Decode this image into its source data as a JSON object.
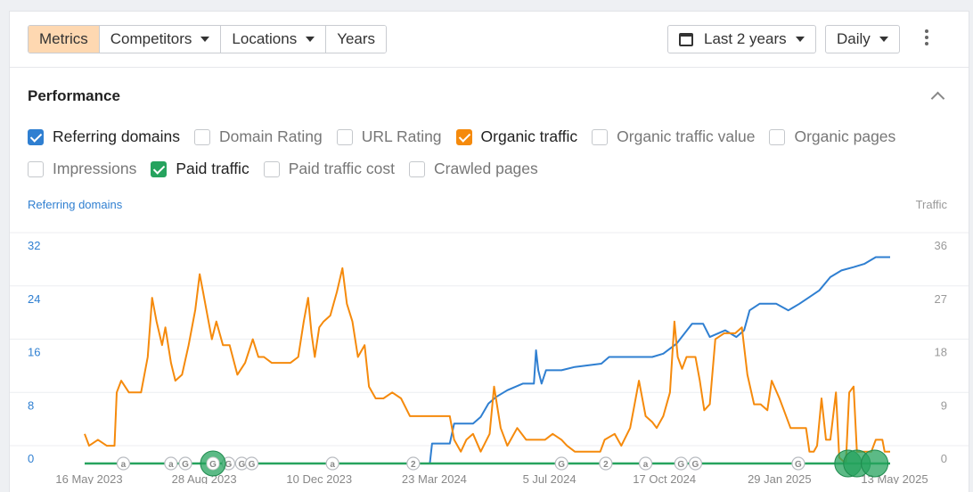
{
  "toolbar": {
    "tabs": [
      {
        "label": "Metrics",
        "active": true,
        "dropdown": false
      },
      {
        "label": "Competitors",
        "active": false,
        "dropdown": true
      },
      {
        "label": "Locations",
        "active": false,
        "dropdown": true
      },
      {
        "label": "Years",
        "active": false,
        "dropdown": false
      }
    ],
    "date_range": "Last 2 years",
    "interval": "Daily",
    "more_icon": "kebab-vertical-icon"
  },
  "panel": {
    "title": "Performance",
    "collapse_icon": "chevron-up-icon",
    "metrics": [
      {
        "label": "Referring domains",
        "checked": true,
        "color": "#2f7fd1"
      },
      {
        "label": "Domain Rating",
        "checked": false
      },
      {
        "label": "URL Rating",
        "checked": false
      },
      {
        "label": "Organic traffic",
        "checked": true,
        "color": "#f58a0c"
      },
      {
        "label": "Organic traffic value",
        "checked": false
      },
      {
        "label": "Organic pages",
        "checked": false
      },
      {
        "label": "Impressions",
        "checked": false
      },
      {
        "label": "Paid traffic",
        "checked": true,
        "color": "#26a35e"
      },
      {
        "label": "Paid traffic cost",
        "checked": false
      },
      {
        "label": "Crawled pages",
        "checked": false
      }
    ]
  },
  "chart_data": {
    "type": "line",
    "left_axis_label": "Referring domains",
    "right_axis_label": "Traffic",
    "left_ticks": [
      "32",
      "24",
      "16",
      "8",
      "0"
    ],
    "right_ticks": [
      "36",
      "27",
      "18",
      "9",
      "0"
    ],
    "x_ticks": [
      "16 May 2023",
      "28 Aug 2023",
      "10 Dec 2023",
      "23 Mar 2024",
      "5 Jul 2024",
      "17 Oct 2024",
      "29 Jan 2025",
      "13 May 2025"
    ],
    "x_range": [
      "2023-05-16",
      "2025-05-13"
    ],
    "left_ylim": [
      0,
      32
    ],
    "right_ylim": [
      0,
      36
    ],
    "series": [
      {
        "name": "Referring domains",
        "axis": "left",
        "color": "#2f7fd1",
        "points": [
          [
            "2024-03-23",
            0
          ],
          [
            "2024-03-25",
            3
          ],
          [
            "2024-04-10",
            3
          ],
          [
            "2024-04-14",
            6
          ],
          [
            "2024-05-01",
            6
          ],
          [
            "2024-05-08",
            7
          ],
          [
            "2024-05-15",
            9
          ],
          [
            "2024-05-22",
            10
          ],
          [
            "2024-06-01",
            11
          ],
          [
            "2024-06-15",
            12
          ],
          [
            "2024-06-25",
            12
          ],
          [
            "2024-06-27",
            17
          ],
          [
            "2024-06-29",
            14
          ],
          [
            "2024-07-02",
            12
          ],
          [
            "2024-07-06",
            14
          ],
          [
            "2024-07-20",
            14
          ],
          [
            "2024-08-01",
            14.5
          ],
          [
            "2024-08-25",
            15
          ],
          [
            "2024-09-01",
            16
          ],
          [
            "2024-10-10",
            16
          ],
          [
            "2024-10-20",
            16.5
          ],
          [
            "2024-11-01",
            18
          ],
          [
            "2024-11-15",
            21
          ],
          [
            "2024-11-25",
            21
          ],
          [
            "2024-12-01",
            19
          ],
          [
            "2024-12-15",
            20
          ],
          [
            "2024-12-25",
            19
          ],
          [
            "2025-01-01",
            20
          ],
          [
            "2025-01-06",
            23
          ],
          [
            "2025-01-15",
            24
          ],
          [
            "2025-01-30",
            24
          ],
          [
            "2025-02-10",
            23
          ],
          [
            "2025-02-20",
            24
          ],
          [
            "2025-03-01",
            25
          ],
          [
            "2025-03-10",
            26
          ],
          [
            "2025-03-20",
            28
          ],
          [
            "2025-03-30",
            29
          ],
          [
            "2025-04-10",
            29.5
          ],
          [
            "2025-04-20",
            30
          ],
          [
            "2025-04-30",
            31
          ],
          [
            "2025-05-13",
            31
          ]
        ]
      },
      {
        "name": "Organic traffic",
        "axis": "right",
        "color": "#f58a0c",
        "points": [
          [
            "2023-05-16",
            5
          ],
          [
            "2023-05-20",
            3
          ],
          [
            "2023-05-28",
            4
          ],
          [
            "2023-06-05",
            3
          ],
          [
            "2023-06-12",
            3
          ],
          [
            "2023-06-14",
            12
          ],
          [
            "2023-06-18",
            14
          ],
          [
            "2023-06-25",
            12
          ],
          [
            "2023-07-06",
            12
          ],
          [
            "2023-07-12",
            18
          ],
          [
            "2023-07-16",
            28
          ],
          [
            "2023-07-20",
            24
          ],
          [
            "2023-07-25",
            20
          ],
          [
            "2023-07-28",
            23
          ],
          [
            "2023-08-02",
            17
          ],
          [
            "2023-08-06",
            14
          ],
          [
            "2023-08-12",
            15
          ],
          [
            "2023-08-18",
            20
          ],
          [
            "2023-08-24",
            26
          ],
          [
            "2023-08-28",
            32
          ],
          [
            "2023-08-31",
            29
          ],
          [
            "2023-09-04",
            25
          ],
          [
            "2023-09-08",
            21
          ],
          [
            "2023-09-12",
            24
          ],
          [
            "2023-09-18",
            20
          ],
          [
            "2023-09-24",
            20
          ],
          [
            "2023-10-01",
            15
          ],
          [
            "2023-10-08",
            17
          ],
          [
            "2023-10-15",
            21
          ],
          [
            "2023-10-20",
            18
          ],
          [
            "2023-10-25",
            18
          ],
          [
            "2023-11-01",
            17
          ],
          [
            "2023-11-10",
            17
          ],
          [
            "2023-11-18",
            17
          ],
          [
            "2023-11-25",
            18
          ],
          [
            "2023-11-30",
            24
          ],
          [
            "2023-12-04",
            28
          ],
          [
            "2023-12-07",
            22
          ],
          [
            "2023-12-10",
            18
          ],
          [
            "2023-12-14",
            23
          ],
          [
            "2023-12-18",
            24
          ],
          [
            "2023-12-24",
            25
          ],
          [
            "2023-12-30",
            29
          ],
          [
            "2024-01-04",
            33
          ],
          [
            "2024-01-08",
            27
          ],
          [
            "2024-01-13",
            24
          ],
          [
            "2024-01-18",
            18
          ],
          [
            "2024-01-24",
            20
          ],
          [
            "2024-01-28",
            13
          ],
          [
            "2024-02-03",
            11
          ],
          [
            "2024-02-10",
            11
          ],
          [
            "2024-02-18",
            12
          ],
          [
            "2024-02-26",
            11
          ],
          [
            "2024-03-05",
            8
          ],
          [
            "2024-03-25",
            8
          ],
          [
            "2024-04-10",
            8
          ],
          [
            "2024-04-14",
            4
          ],
          [
            "2024-04-20",
            2
          ],
          [
            "2024-04-25",
            4
          ],
          [
            "2024-05-01",
            5
          ],
          [
            "2024-05-08",
            2
          ],
          [
            "2024-05-16",
            5
          ],
          [
            "2024-05-20",
            13
          ],
          [
            "2024-05-26",
            6
          ],
          [
            "2024-06-01",
            3
          ],
          [
            "2024-06-10",
            6
          ],
          [
            "2024-06-18",
            4
          ],
          [
            "2024-06-26",
            4
          ],
          [
            "2024-07-05",
            4
          ],
          [
            "2024-07-12",
            5
          ],
          [
            "2024-07-20",
            4
          ],
          [
            "2024-07-25",
            3
          ],
          [
            "2024-08-01",
            2
          ],
          [
            "2024-08-12",
            2
          ],
          [
            "2024-08-24",
            2
          ],
          [
            "2024-08-28",
            4
          ],
          [
            "2024-09-06",
            5
          ],
          [
            "2024-09-12",
            3
          ],
          [
            "2024-09-20",
            6
          ],
          [
            "2024-09-24",
            10
          ],
          [
            "2024-09-28",
            14
          ],
          [
            "2024-10-04",
            8
          ],
          [
            "2024-10-10",
            7
          ],
          [
            "2024-10-14",
            6
          ],
          [
            "2024-10-20",
            8
          ],
          [
            "2024-10-26",
            12
          ],
          [
            "2024-10-30",
            24
          ],
          [
            "2024-11-02",
            18
          ],
          [
            "2024-11-06",
            16
          ],
          [
            "2024-11-10",
            18
          ],
          [
            "2024-11-18",
            18
          ],
          [
            "2024-11-22",
            14
          ],
          [
            "2024-11-26",
            9
          ],
          [
            "2024-12-01",
            10
          ],
          [
            "2024-12-06",
            21
          ],
          [
            "2024-12-14",
            22
          ],
          [
            "2024-12-24",
            22
          ],
          [
            "2024-12-30",
            23
          ],
          [
            "2025-01-04",
            15
          ],
          [
            "2025-01-10",
            10
          ],
          [
            "2025-01-16",
            10
          ],
          [
            "2025-01-22",
            9
          ],
          [
            "2025-01-26",
            14
          ],
          [
            "2025-02-02",
            11
          ],
          [
            "2025-02-06",
            9
          ],
          [
            "2025-02-12",
            6
          ],
          [
            "2025-02-20",
            6
          ],
          [
            "2025-02-26",
            6
          ],
          [
            "2025-03-01",
            2
          ],
          [
            "2025-03-05",
            2
          ],
          [
            "2025-03-08",
            3
          ],
          [
            "2025-03-12",
            11
          ],
          [
            "2025-03-16",
            4
          ],
          [
            "2025-03-20",
            4
          ],
          [
            "2025-03-25",
            12
          ],
          [
            "2025-03-28",
            1
          ],
          [
            "2025-04-03",
            0
          ],
          [
            "2025-04-06",
            12
          ],
          [
            "2025-04-10",
            13
          ],
          [
            "2025-04-13",
            2
          ],
          [
            "2025-04-20",
            2
          ],
          [
            "2025-04-26",
            2
          ],
          [
            "2025-04-30",
            4
          ],
          [
            "2025-05-06",
            4
          ],
          [
            "2025-05-08",
            2
          ],
          [
            "2025-05-13",
            2
          ]
        ]
      },
      {
        "name": "Paid traffic",
        "axis": "right",
        "color": "#26a35e",
        "points": [
          [
            "2023-05-16",
            0
          ],
          [
            "2025-05-13",
            0
          ]
        ]
      }
    ],
    "annotations": [
      {
        "date": "2023-06-20",
        "glyph": "a"
      },
      {
        "date": "2023-08-02",
        "glyph": "a"
      },
      {
        "date": "2023-08-15",
        "glyph": "G"
      },
      {
        "date": "2023-09-23",
        "glyph": "G"
      },
      {
        "date": "2023-10-05",
        "glyph": "G"
      },
      {
        "date": "2023-10-14",
        "glyph": "G"
      },
      {
        "date": "2023-12-26",
        "glyph": "a"
      },
      {
        "date": "2024-03-08",
        "glyph": "2"
      },
      {
        "date": "2024-07-20",
        "glyph": "G"
      },
      {
        "date": "2024-08-29",
        "glyph": "2"
      },
      {
        "date": "2024-10-04",
        "glyph": "a"
      },
      {
        "date": "2024-11-05",
        "glyph": "G"
      },
      {
        "date": "2024-11-18",
        "glyph": "G"
      },
      {
        "date": "2025-02-19",
        "glyph": "G"
      }
    ],
    "paid_markers": [
      {
        "date": "2023-09-09",
        "size": "small"
      },
      {
        "date": "2025-04-05",
        "size": "large"
      },
      {
        "date": "2025-04-13",
        "size": "large"
      },
      {
        "date": "2025-04-29",
        "size": "large"
      }
    ]
  }
}
